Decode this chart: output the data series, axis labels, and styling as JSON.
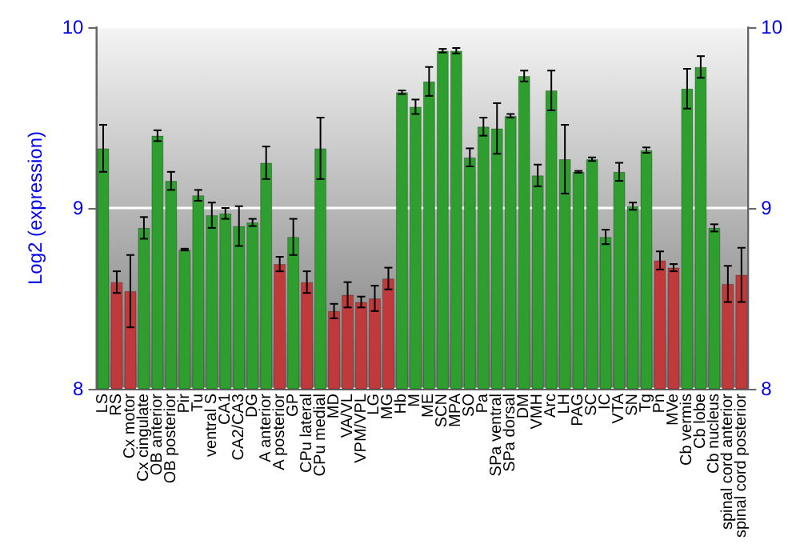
{
  "chart_data": {
    "type": "bar",
    "ylabel": "Log2 (expression)",
    "categories": [
      "LS",
      "RS",
      "Cx motor",
      "Cx cingulate",
      "OB anterior",
      "OB posterior",
      "Pir",
      "Tu",
      "ventral S",
      "CA1",
      "CA2/CA3",
      "DG",
      "A anterior",
      "A posterior",
      "GP",
      "CPu lateral",
      "CPu medial",
      "MD",
      "VA/VL",
      "VPM/VPL",
      "LG",
      "MG",
      "Hb",
      "M",
      "ME",
      "SCN",
      "MPA",
      "SO",
      "Pa",
      "SPa ventral",
      "SPa dorsal",
      "DM",
      "VMH",
      "Arc",
      "LH",
      "PAG",
      "SC",
      "IC",
      "VTA",
      "SN",
      "Tg",
      "Pn",
      "MVe",
      "Cb vermis",
      "Cb lobe",
      "Cb nucleus",
      "spinal cord anterior",
      "spinal cord posterior"
    ],
    "values": [
      9.33,
      8.59,
      8.54,
      8.89,
      9.4,
      9.15,
      8.77,
      9.07,
      8.96,
      8.97,
      8.9,
      8.92,
      9.25,
      8.69,
      8.84,
      8.59,
      9.33,
      8.43,
      8.52,
      8.48,
      8.5,
      8.61,
      9.64,
      9.56,
      9.7,
      9.87,
      9.87,
      9.28,
      9.45,
      9.44,
      9.51,
      9.73,
      9.18,
      9.65,
      9.27,
      9.2,
      9.27,
      8.84,
      9.2,
      9.01,
      9.32,
      8.71,
      8.67,
      9.66,
      9.78,
      8.89,
      8.58,
      8.63
    ],
    "errors": [
      0.13,
      0.06,
      0.2,
      0.06,
      0.03,
      0.05,
      0.005,
      0.03,
      0.07,
      0.03,
      0.11,
      0.02,
      0.09,
      0.04,
      0.1,
      0.06,
      0.17,
      0.04,
      0.07,
      0.03,
      0.07,
      0.06,
      0.01,
      0.04,
      0.08,
      0.01,
      0.015,
      0.05,
      0.05,
      0.14,
      0.01,
      0.03,
      0.06,
      0.11,
      0.19,
      0.005,
      0.01,
      0.04,
      0.05,
      0.02,
      0.015,
      0.05,
      0.02,
      0.11,
      0.06,
      0.02,
      0.1,
      0.15
    ],
    "colors": [
      "#2e9e2e",
      "#c0393b",
      "#c0393b",
      "#2e9e2e",
      "#2e9e2e",
      "#2e9e2e",
      "#2e9e2e",
      "#2e9e2e",
      "#2e9e2e",
      "#2e9e2e",
      "#2e9e2e",
      "#2e9e2e",
      "#2e9e2e",
      "#c0393b",
      "#2e9e2e",
      "#c0393b",
      "#2e9e2e",
      "#c0393b",
      "#c0393b",
      "#c0393b",
      "#c0393b",
      "#c0393b",
      "#2e9e2e",
      "#2e9e2e",
      "#2e9e2e",
      "#2e9e2e",
      "#2e9e2e",
      "#2e9e2e",
      "#2e9e2e",
      "#2e9e2e",
      "#2e9e2e",
      "#2e9e2e",
      "#2e9e2e",
      "#2e9e2e",
      "#2e9e2e",
      "#2e9e2e",
      "#2e9e2e",
      "#2e9e2e",
      "#2e9e2e",
      "#2e9e2e",
      "#2e9e2e",
      "#c0393b",
      "#c0393b",
      "#2e9e2e",
      "#2e9e2e",
      "#2e9e2e",
      "#c0393b",
      "#c0393b"
    ],
    "ylim": [
      8,
      10
    ],
    "yticks": [
      8,
      9,
      10
    ],
    "y2lim": [
      8,
      10
    ],
    "y2ticks": [
      8,
      9,
      10
    ],
    "grid": "y"
  }
}
